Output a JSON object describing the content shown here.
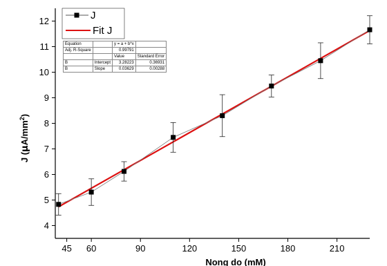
{
  "chart_data": {
    "type": "scatter",
    "xlabel": "Nong do (mM)",
    "ylabel_main": "J (",
    "ylabel_mu": "μ",
    "ylabel_unit": "A/mm",
    "ylabel_sup": "2",
    "ylabel_close": ")",
    "xlim": [
      38,
      230
    ],
    "ylim": [
      3.5,
      12.5
    ],
    "xticks": [
      45,
      60,
      90,
      120,
      150,
      180,
      210
    ],
    "xtick_labels": [
      "45",
      "60",
      "90",
      "120",
      "150",
      "180",
      "210"
    ],
    "yticks": [
      4,
      5,
      6,
      7,
      8,
      9,
      10,
      11,
      12
    ],
    "ytick_labels": [
      "4",
      "5",
      "6",
      "7",
      "8",
      "9",
      "10",
      "11",
      "12"
    ],
    "series": [
      {
        "name": "J",
        "color": "#000000",
        "x": [
          40,
          60,
          80,
          110,
          140,
          170,
          200,
          230
        ],
        "y": [
          4.83,
          5.31,
          6.12,
          7.45,
          8.3,
          9.46,
          10.45,
          11.66
        ],
        "err": [
          0.42,
          0.52,
          0.38,
          0.58,
          0.82,
          0.43,
          0.7,
          0.55
        ]
      },
      {
        "name": "Fit J",
        "color": "#dd1111",
        "type": "line",
        "intercept": 3.28223,
        "slope": 0.03629
      }
    ],
    "legend": {
      "placement": "top-left"
    },
    "fit_table": {
      "equation_label": "Equation",
      "equation_value": "y = a + b*x",
      "rsq_label": "Adj. R-Square",
      "rsq_value": "0.99791",
      "header_value": "Value",
      "header_error": "Standard Error",
      "rows": [
        {
          "col1": "B",
          "col2": "Intercept",
          "value": "3.28223",
          "error": "0.36931"
        },
        {
          "col1": "B",
          "col2": "Slope",
          "value": "0.03629",
          "error": "0.00288"
        }
      ]
    }
  }
}
